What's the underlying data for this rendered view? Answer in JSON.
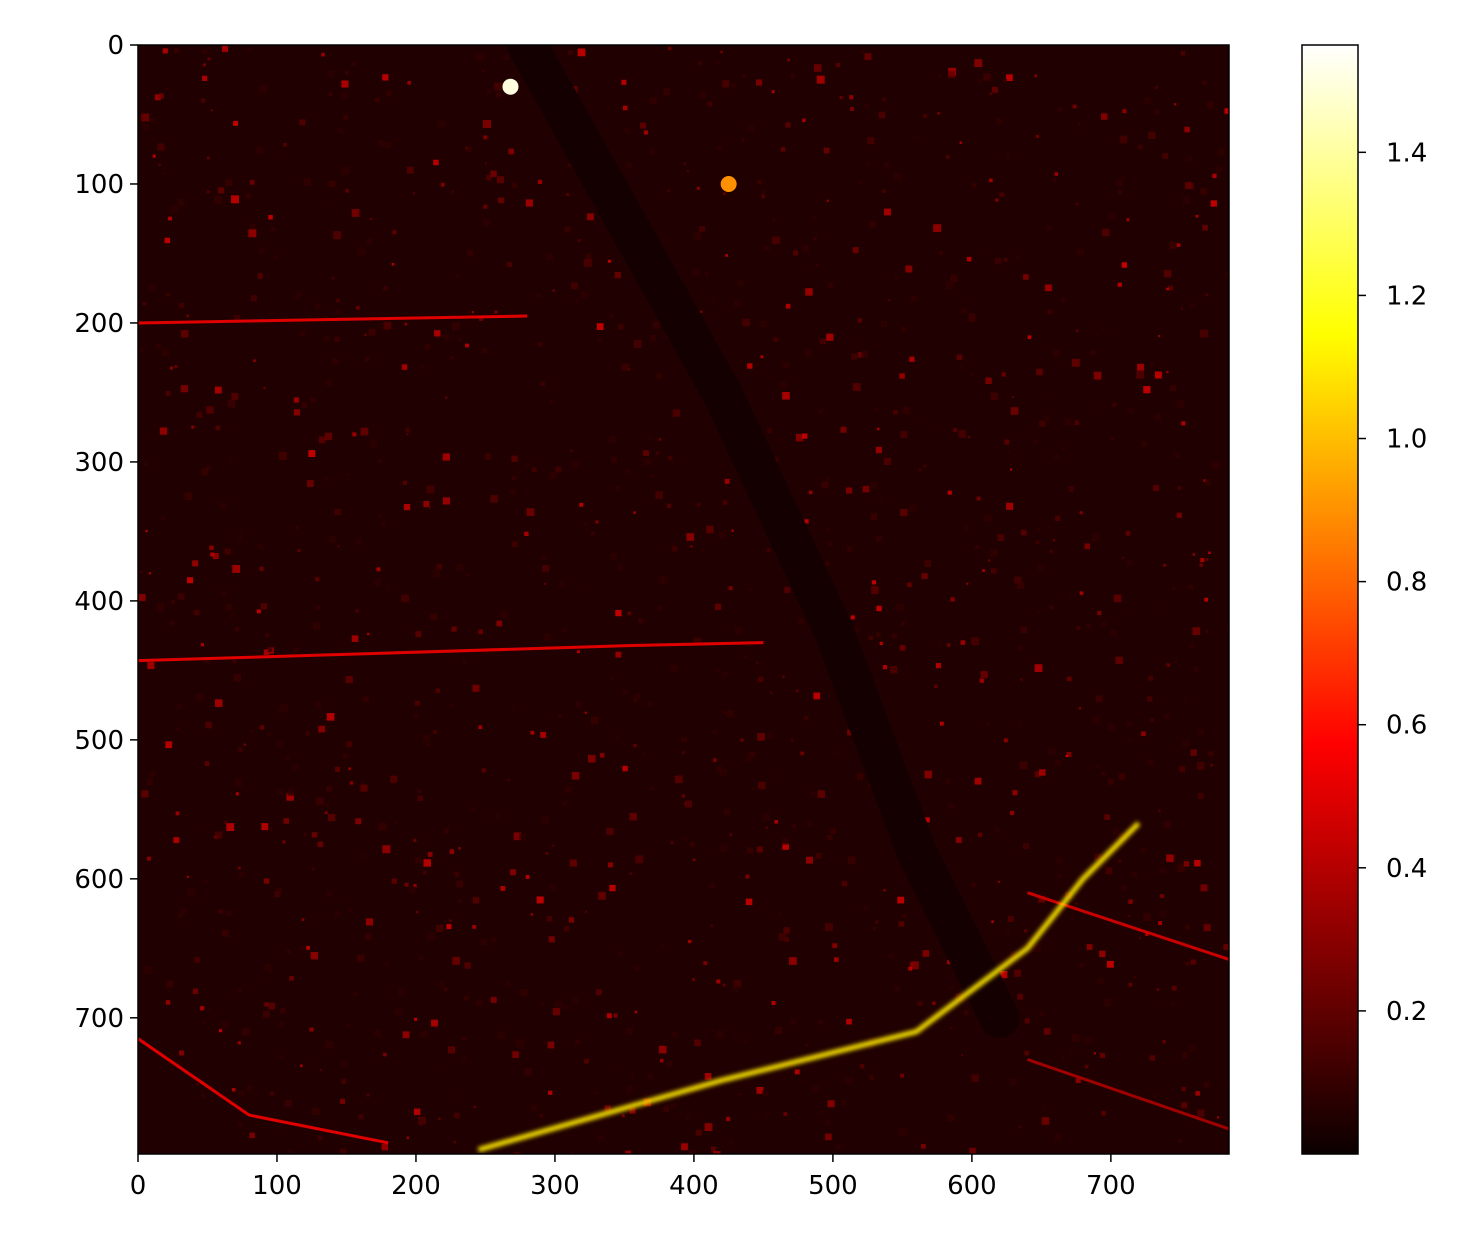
{
  "chart_data": {
    "type": "heatmap",
    "title": "",
    "xlabel": "",
    "ylabel": "",
    "colormap": "hot",
    "image_width": 785,
    "image_height": 798,
    "xlim": [
      0,
      785
    ],
    "ylim": [
      798,
      0
    ],
    "x_ticks": [
      0,
      100,
      200,
      300,
      400,
      500,
      600,
      700
    ],
    "y_ticks": [
      0,
      100,
      200,
      300,
      400,
      500,
      600,
      700
    ],
    "colorbar": {
      "range": [
        0.0,
        1.55
      ],
      "ticks": [
        0.2,
        0.4,
        0.6,
        0.8,
        1.0,
        1.2,
        1.4
      ],
      "tick_labels": [
        "0.2",
        "0.4",
        "0.6",
        "0.8",
        "1.0",
        "1.2",
        "1.4"
      ]
    },
    "colormap_stops": [
      "#0b0000",
      "#ff0000",
      "#ffff00",
      "#ffffff"
    ],
    "features": {
      "bright_spot": {
        "x": 268,
        "y": 30,
        "value": 1.5
      },
      "bright_spot_2": {
        "x": 425,
        "y": 100,
        "value": 0.9
      },
      "bright_road_diagonal": {
        "points": [
          [
            245,
            795
          ],
          [
            420,
            745
          ],
          [
            560,
            710
          ],
          [
            640,
            650
          ],
          [
            680,
            600
          ],
          [
            720,
            560
          ]
        ],
        "value": 1.1
      },
      "river_dark_channel": {
        "points": [
          [
            280,
            0
          ],
          [
            420,
            250
          ],
          [
            500,
            420
          ],
          [
            560,
            580
          ],
          [
            620,
            700
          ]
        ],
        "value": 0.02
      },
      "roads": [
        {
          "points": [
            [
              0,
              200
            ],
            [
              280,
              195
            ]
          ],
          "value": 0.5
        },
        {
          "points": [
            [
              0,
              443
            ],
            [
              360,
              432
            ],
            [
              450,
              430
            ]
          ],
          "value": 0.5
        },
        {
          "points": [
            [
              0,
              715
            ],
            [
              80,
              770
            ],
            [
              180,
              790
            ]
          ],
          "value": 0.5
        },
        {
          "points": [
            [
              640,
              610
            ],
            [
              785,
              658
            ]
          ],
          "value": 0.45
        },
        {
          "points": [
            [
              640,
              730
            ],
            [
              785,
              780
            ]
          ],
          "value": 0.35
        }
      ]
    },
    "grid": false
  }
}
